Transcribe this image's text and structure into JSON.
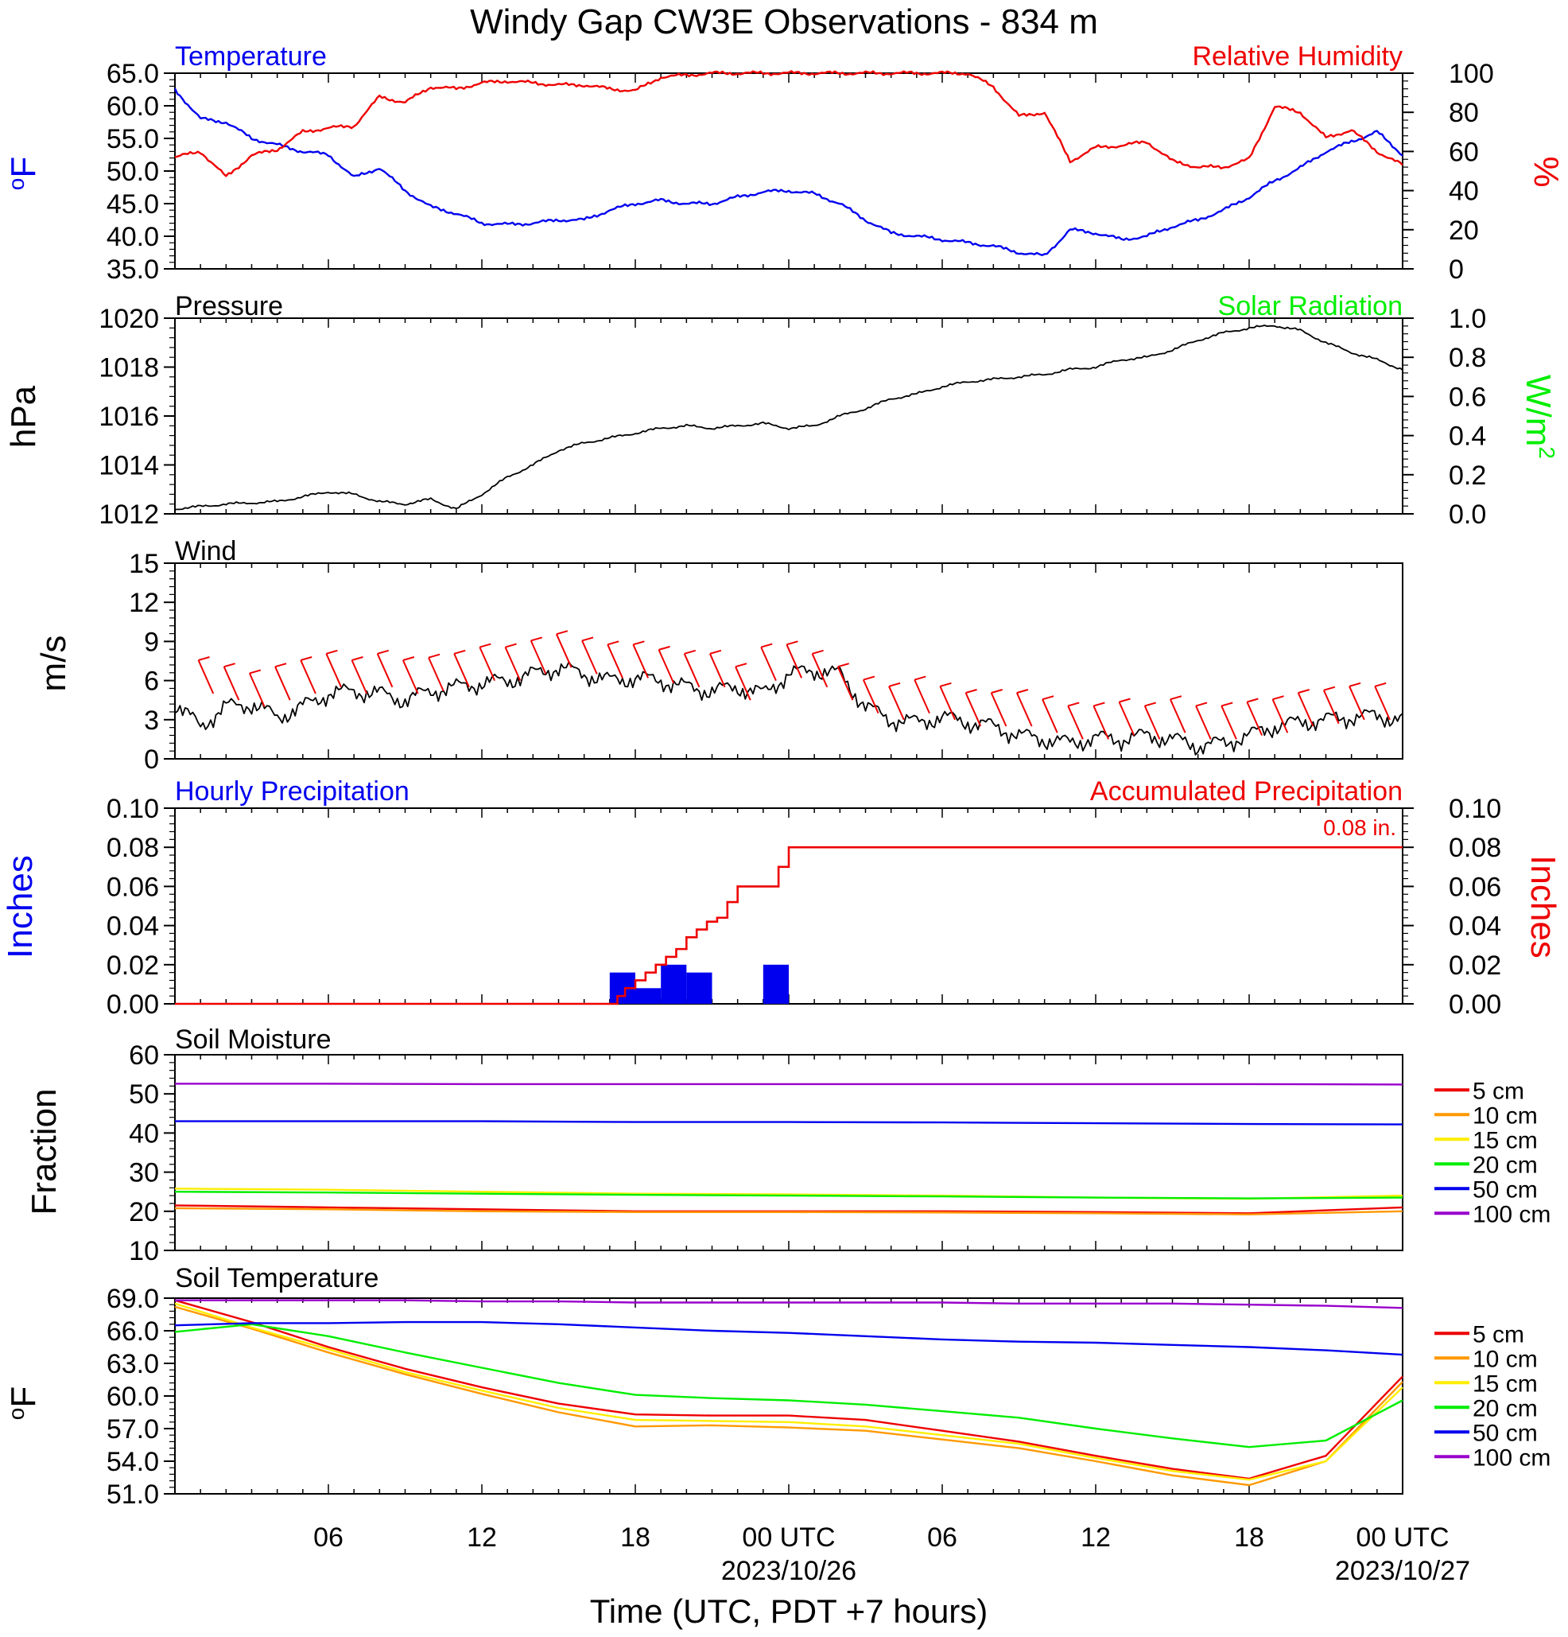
{
  "figure": {
    "title": "Windy Gap CW3E Observations - 834 m",
    "x_axis_title": "Time (UTC, PDT +7 hours)",
    "x_ticks": [
      {
        "t": 6,
        "label": "06",
        "date": ""
      },
      {
        "t": 12,
        "label": "12",
        "date": ""
      },
      {
        "t": 18,
        "label": "18",
        "date": ""
      },
      {
        "t": 24,
        "label": "00 UTC",
        "date": "2023/10/26"
      },
      {
        "t": 30,
        "label": "06",
        "date": ""
      },
      {
        "t": 36,
        "label": "12",
        "date": ""
      },
      {
        "t": 42,
        "label": "18",
        "date": ""
      },
      {
        "t": 48,
        "label": "00 UTC",
        "date": "2023/10/27"
      }
    ],
    "colors": {
      "blue": "#0000ee",
      "red": "#ee0000",
      "green": "#00ee00",
      "black": "#000000"
    }
  },
  "chart_data": [
    {
      "id": "temperature_rh",
      "type": "line",
      "title_left": "Temperature",
      "title_right": "Relative Humidity",
      "ylabel_left": "oF",
      "ylabel_right": "%",
      "ylim_left": [
        35,
        65
      ],
      "yticks_left": [
        "35.0",
        "40.0",
        "45.0",
        "50.0",
        "55.0",
        "60.0",
        "65.0"
      ],
      "ylim_right": [
        0,
        100
      ],
      "yticks_right": [
        "0",
        "20",
        "40",
        "60",
        "80",
        "100"
      ],
      "x_hours_since_start": [
        0,
        1,
        2,
        3,
        4,
        5,
        6,
        7,
        8,
        9,
        10,
        11,
        12,
        13,
        14,
        15,
        16,
        17,
        18,
        19,
        20,
        21,
        22,
        23,
        24,
        25,
        26,
        27,
        28,
        29,
        30,
        31,
        32,
        33,
        34,
        35,
        36,
        37,
        38,
        39,
        40,
        41,
        42,
        43,
        44,
        45,
        46,
        47,
        48
      ],
      "series": [
        {
          "name": "Temperature",
          "axis": "left",
          "color": "#0000ee",
          "values": [
            62.5,
            58,
            57.5,
            55,
            54,
            53,
            52.5,
            49,
            50.5,
            47,
            44.5,
            43.5,
            42,
            41.8,
            42,
            42.5,
            42.5,
            44,
            45,
            45.5,
            45,
            45,
            46,
            46.8,
            47,
            46.5,
            45,
            42.5,
            40.5,
            40,
            39.5,
            39,
            38.5,
            37.5,
            37,
            41,
            40.5,
            39.5,
            40,
            41.5,
            42.5,
            44,
            46,
            48.5,
            50.5,
            53,
            54.5,
            56,
            52.5
          ]
        },
        {
          "name": "Relative Humidity",
          "axis": "right",
          "color": "#ee0000",
          "values": [
            57,
            60,
            47,
            58,
            61,
            70,
            72,
            73,
            88,
            85,
            93,
            92,
            95,
            96,
            95,
            94,
            94,
            92,
            91,
            98,
            99,
            100,
            100,
            100,
            100,
            100,
            100,
            100,
            100,
            100,
            100,
            100,
            93,
            78,
            80,
            55,
            62,
            63,
            65,
            55,
            52,
            52,
            56,
            83,
            80,
            67,
            71,
            60,
            53
          ]
        }
      ]
    },
    {
      "id": "pressure_solar",
      "type": "line",
      "title_left": "Pressure",
      "title_right": "Solar Radiation",
      "ylabel_left": "hPa",
      "ylabel_right": "W/m2",
      "ylim_left": [
        1012,
        1020
      ],
      "yticks_left": [
        "1012",
        "1014",
        "1016",
        "1018",
        "1020"
      ],
      "ylim_right": [
        0.0,
        1.0
      ],
      "yticks_right": [
        "0.0",
        "0.2",
        "0.4",
        "0.6",
        "0.8",
        "1.0"
      ],
      "x_hours_since_start": [
        0,
        2,
        4,
        5,
        6,
        7,
        8,
        9,
        10,
        11,
        12,
        13,
        14,
        15,
        16,
        17,
        18,
        19,
        20,
        21,
        22,
        23,
        24,
        25,
        26,
        27,
        28,
        29,
        30,
        31,
        32,
        33,
        34,
        35,
        36,
        37,
        38,
        39,
        40,
        41,
        42,
        43,
        44,
        45,
        46,
        47,
        48
      ],
      "series": [
        {
          "name": "Pressure",
          "axis": "left",
          "color": "#000000",
          "values": [
            1012.2,
            1012.4,
            1012.5,
            1012.7,
            1012.9,
            1012.8,
            1012.5,
            1012.4,
            1012.6,
            1012.2,
            1012.8,
            1013.5,
            1014,
            1014.6,
            1014.9,
            1015.1,
            1015.3,
            1015.5,
            1015.6,
            1015.5,
            1015.6,
            1015.7,
            1015.5,
            1015.6,
            1016,
            1016.3,
            1016.7,
            1016.9,
            1017.2,
            1017.4,
            1017.5,
            1017.6,
            1017.7,
            1017.9,
            1018,
            1018.3,
            1018.4,
            1018.7,
            1019.1,
            1019.4,
            1019.6,
            1019.7,
            1019.5,
            1019.0,
            1018.6,
            1018.3,
            1017.9
          ]
        }
      ]
    },
    {
      "id": "wind",
      "type": "line",
      "title_left": "Wind",
      "ylabel_left": "m/s",
      "ylim_left": [
        0,
        15
      ],
      "yticks_left": [
        "0",
        "3",
        "6",
        "9",
        "12",
        "15"
      ],
      "x_hours_since_start": [
        0,
        1,
        2,
        3,
        4,
        5,
        6,
        7,
        8,
        9,
        10,
        11,
        12,
        13,
        14,
        15,
        16,
        17,
        18,
        19,
        20,
        21,
        22,
        23,
        24,
        25,
        26,
        27,
        28,
        29,
        30,
        31,
        32,
        33,
        34,
        35,
        36,
        37,
        38,
        39,
        40,
        41,
        42,
        43,
        44,
        45,
        46,
        47,
        48
      ],
      "series": [
        {
          "name": "Wind speed",
          "axis": "left",
          "color": "#000000",
          "values": [
            4.2,
            2.5,
            4,
            4.2,
            3.2,
            4,
            5,
            5.2,
            5,
            4.5,
            5.2,
            5.5,
            5.8,
            6,
            6.5,
            7,
            6.5,
            6,
            6.2,
            6,
            5.5,
            5.2,
            5.5,
            5,
            6.5,
            6.8,
            6.5,
            4,
            3,
            2.8,
            3.2,
            2.8,
            2.5,
            1.8,
            1.5,
            1.2,
            1.6,
            1.5,
            1.8,
            1.5,
            1,
            1.2,
            1.8,
            2.5,
            2.8,
            3,
            3.2,
            3.3,
            3
          ]
        }
      ],
      "barbs": {
        "color": "#ee0000",
        "hours": [
          1.5,
          2.5,
          3.5,
          4.5,
          5.5,
          6.5,
          7.5,
          8.5,
          9.5,
          10.5,
          11.5,
          12.5,
          13.5,
          14.5,
          15.5,
          16.5,
          17.5,
          18.5,
          19.5,
          20.5,
          21.5,
          22.5,
          23.5,
          24.5,
          25.5,
          26.5,
          27.5,
          28.5,
          29.5,
          30.5,
          31.5,
          32.5,
          33.5,
          34.5,
          35.5,
          36.5,
          37.5,
          38.5,
          39.5,
          40.5,
          41.5,
          42.5,
          43.5,
          44.5,
          45.5,
          46.5,
          47.5
        ],
        "speed": [
          5,
          4.5,
          4,
          4.5,
          5,
          5.5,
          5,
          5.5,
          5,
          5.2,
          5.5,
          6,
          6,
          6.5,
          7,
          6.5,
          6.2,
          6.2,
          5.8,
          5.5,
          5.5,
          4.5,
          6,
          6.2,
          5.5,
          4.5,
          3.5,
          3,
          3.5,
          3,
          2.5,
          2.5,
          2.5,
          2,
          1.5,
          1.5,
          1.8,
          1.5,
          2,
          1.5,
          1.5,
          1.8,
          2,
          2.5,
          2.7,
          3,
          3
        ]
      }
    },
    {
      "id": "precipitation",
      "type": "bar",
      "title_left": "Hourly Precipitation",
      "title_right": "Accumulated Precipitation",
      "annotation": "0.08 in.",
      "ylabel_left": "Inches",
      "ylabel_right": "Inches",
      "ylim_left": [
        0,
        0.1
      ],
      "yticks": [
        "0.00",
        "0.02",
        "0.04",
        "0.06",
        "0.08",
        "0.10"
      ],
      "ylim_right": [
        0,
        0.1
      ],
      "hourly_bars": {
        "start_hours": [
          17,
          18,
          19,
          20,
          22,
          23
        ],
        "values": [
          0.016,
          0.008,
          0.02,
          0.016,
          0,
          0.02
        ],
        "color": "#0000ee"
      },
      "accumulated": {
        "color": "#ee0000",
        "x_hours_since_start": [
          0,
          17,
          17.3,
          17.6,
          18,
          18.4,
          18.8,
          19.2,
          19.6,
          20,
          20.4,
          20.8,
          21.2,
          21.6,
          22,
          22.4,
          22.8,
          23.2,
          23.6,
          24,
          48
        ],
        "values": [
          0,
          0,
          0.004,
          0.008,
          0.012,
          0.016,
          0.02,
          0.024,
          0.028,
          0.034,
          0.038,
          0.042,
          0.044,
          0.052,
          0.06,
          0.06,
          0.06,
          0.06,
          0.07,
          0.08,
          0.08
        ]
      }
    },
    {
      "id": "soil_moisture",
      "type": "line",
      "title_left": "Soil Moisture",
      "ylabel_left": "Fraction",
      "ylim_left": [
        10,
        60
      ],
      "yticks_left": [
        "10",
        "20",
        "30",
        "40",
        "50",
        "60"
      ],
      "x_hours_since_start": [
        0,
        6,
        12,
        18,
        24,
        30,
        36,
        42,
        48
      ],
      "series": [
        {
          "name": "5 cm",
          "color": "#ee0000",
          "values": [
            21.5,
            21,
            20.5,
            20,
            20,
            20,
            19.8,
            19.5,
            21
          ]
        },
        {
          "name": "10 cm",
          "color": "#ff9900",
          "values": [
            20.8,
            20.5,
            20,
            19.8,
            19.8,
            19.7,
            19.5,
            19.2,
            20
          ]
        },
        {
          "name": "15 cm",
          "color": "#ffee00",
          "values": [
            25.8,
            25.5,
            25,
            24.5,
            24.3,
            24,
            23.5,
            23.2,
            24
          ]
        },
        {
          "name": "20 cm",
          "color": "#00ee00",
          "values": [
            25,
            24.8,
            24.5,
            24.2,
            24,
            23.8,
            23.5,
            23.3,
            23.5
          ]
        },
        {
          "name": "50 cm",
          "color": "#0000ee",
          "values": [
            43,
            43,
            43,
            42.8,
            42.8,
            42.7,
            42.5,
            42.3,
            42.2
          ]
        },
        {
          "name": "100 cm",
          "color": "#9900cc",
          "values": [
            52.6,
            52.6,
            52.5,
            52.5,
            52.5,
            52.5,
            52.5,
            52.5,
            52.4
          ]
        }
      ]
    },
    {
      "id": "soil_temperature",
      "type": "line",
      "title_left": "Soil Temperature",
      "ylabel_left": "oF",
      "ylim_left": [
        51,
        69
      ],
      "yticks_left": [
        "51.0",
        "54.0",
        "57.0",
        "60.0",
        "63.0",
        "66.0",
        "69.0"
      ],
      "x_hours_since_start": [
        0,
        3,
        6,
        9,
        12,
        15,
        18,
        21,
        24,
        27,
        30,
        33,
        36,
        39,
        42,
        45,
        48
      ],
      "series": [
        {
          "name": "5 cm",
          "color": "#ee0000",
          "values": [
            68.8,
            66.8,
            64.5,
            62.5,
            60.8,
            59.3,
            58.3,
            58.2,
            58.2,
            57.8,
            56.8,
            55.8,
            54.5,
            53.3,
            52.4,
            54.5,
            61.8
          ]
        },
        {
          "name": "10 cm",
          "color": "#ff9900",
          "values": [
            68.2,
            66.2,
            64,
            62,
            60.2,
            58.5,
            57.2,
            57.3,
            57.1,
            56.8,
            56,
            55.2,
            54,
            52.7,
            51.8,
            54,
            61.3
          ]
        },
        {
          "name": "15 cm",
          "color": "#ffee00",
          "values": [
            68.5,
            66.3,
            64.3,
            62.2,
            60.5,
            58.9,
            57.8,
            57.7,
            57.6,
            57.2,
            56.4,
            55.6,
            54.3,
            53.1,
            52.3,
            54,
            60.8
          ]
        },
        {
          "name": "20 cm",
          "color": "#00ee00",
          "values": [
            65.9,
            66.6,
            65.5,
            64,
            62.6,
            61.2,
            60.1,
            59.8,
            59.6,
            59.2,
            58.6,
            58,
            57,
            56.1,
            55.3,
            55.9,
            59.6
          ]
        },
        {
          "name": "50 cm",
          "color": "#0000ee",
          "values": [
            66.5,
            66.7,
            66.7,
            66.8,
            66.8,
            66.6,
            66.3,
            66,
            65.8,
            65.5,
            65.2,
            65,
            64.9,
            64.7,
            64.5,
            64.2,
            63.8
          ]
        },
        {
          "name": "100 cm",
          "color": "#9900cc",
          "values": [
            68.8,
            68.8,
            68.8,
            68.8,
            68.7,
            68.7,
            68.6,
            68.6,
            68.6,
            68.6,
            68.6,
            68.5,
            68.5,
            68.5,
            68.4,
            68.3,
            68.1
          ]
        }
      ]
    }
  ]
}
